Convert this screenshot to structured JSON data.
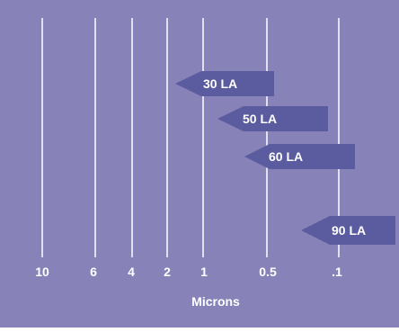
{
  "chart_data": {
    "type": "bar",
    "title": "",
    "xlabel": "Microns",
    "ylabel": "",
    "x_scale": "log-reversed",
    "tick_labels": [
      "10",
      "6",
      "4",
      "2",
      "1",
      "0.5",
      ".1"
    ],
    "tick_values": [
      10,
      6,
      4,
      2,
      1,
      0.5,
      0.1
    ],
    "series": [
      {
        "name": "30 LA",
        "start": 0.5,
        "end": 2
      },
      {
        "name": "50 LA",
        "start": 0.1,
        "end": 1
      },
      {
        "name": "60 LA",
        "start": 0.08,
        "end": 0.7
      },
      {
        "name": "90 LA",
        "start": 0.03,
        "end": 0.2
      }
    ],
    "grid": true,
    "legend": "none",
    "colors": {
      "background": "#8783B8",
      "gridline": "#FFFFFF",
      "arrow": "#5B5B9F",
      "text": "#FFFFFF"
    }
  }
}
